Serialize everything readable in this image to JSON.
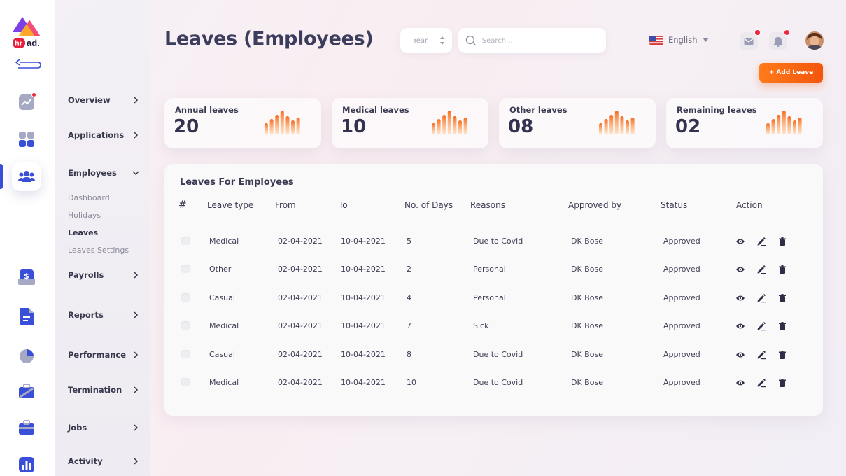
{
  "app": {
    "logo_text": "hr ad.",
    "accent": "#3a4fd8",
    "brand_orange": "#f2560c"
  },
  "header": {
    "title": "Leaves (Employees)",
    "year_placeholder": "Year",
    "search_placeholder": "Search...",
    "language": "English",
    "add_button": "+ Add Leave"
  },
  "sidebar": {
    "items": [
      {
        "label": "Overview",
        "icon": "chevron-right-icon"
      },
      {
        "label": "Applications",
        "icon": "chevron-right-icon"
      },
      {
        "label": "Employees",
        "icon": "chevron-down-icon"
      },
      {
        "label": "Payrolls",
        "icon": "chevron-right-icon"
      },
      {
        "label": "Reports",
        "icon": "chevron-right-icon"
      },
      {
        "label": "Performance",
        "icon": "chevron-right-icon"
      },
      {
        "label": "Termination",
        "icon": "chevron-right-icon"
      },
      {
        "label": "Jobs",
        "icon": "chevron-right-icon"
      },
      {
        "label": "Activity",
        "icon": "chevron-right-icon"
      }
    ],
    "employees_sub": [
      "Dashboard",
      "Holidays",
      "Leaves",
      "Leaves Settings"
    ]
  },
  "rail_icons": [
    "trend-chart-icon",
    "apps-grid-icon",
    "employees-group-icon",
    "payroll-dollar-icon",
    "report-document-icon",
    "performance-pie-icon",
    "termination-briefcase-icon",
    "jobs-briefcase-icon",
    "activity-bar-chart-icon"
  ],
  "stats": [
    {
      "label": "Annual leaves",
      "value": "20"
    },
    {
      "label": "Medical leaves",
      "value": "10"
    },
    {
      "label": "Other leaves",
      "value": "08"
    },
    {
      "label": "Remaining leaves",
      "value": "02"
    }
  ],
  "table": {
    "title": "Leaves For Employees",
    "columns": [
      "#",
      "Leave type",
      "From",
      "To",
      "No. of Days",
      "Reasons",
      "Approved by",
      "Status",
      "Action"
    ],
    "rows": [
      {
        "type": "Medical",
        "from": "02-04-2021",
        "to": "10-04-2021",
        "days": "5",
        "reason": "Due to Covid",
        "approved_by": "DK Bose",
        "status": "Approved"
      },
      {
        "type": "Other",
        "from": "02-04-2021",
        "to": "10-04-2021",
        "days": "2",
        "reason": "Personal",
        "approved_by": "DK Bose",
        "status": "Approved"
      },
      {
        "type": "Casual",
        "from": "02-04-2021",
        "to": "10-04-2021",
        "days": "4",
        "reason": "Personal",
        "approved_by": "DK Bose",
        "status": "Approved"
      },
      {
        "type": "Medical",
        "from": "02-04-2021",
        "to": "10-04-2021",
        "days": "7",
        "reason": "Sick",
        "approved_by": "DK Bose",
        "status": "Approved"
      },
      {
        "type": "Casual",
        "from": "02-04-2021",
        "to": "10-04-2021",
        "days": "8",
        "reason": "Due to Covid",
        "approved_by": "DK Bose",
        "status": "Approved"
      },
      {
        "type": "Medical",
        "from": "02-04-2021",
        "to": "10-04-2021",
        "days": "10",
        "reason": "Due to Covid",
        "approved_by": "DK Bose",
        "status": "Approved"
      }
    ]
  }
}
